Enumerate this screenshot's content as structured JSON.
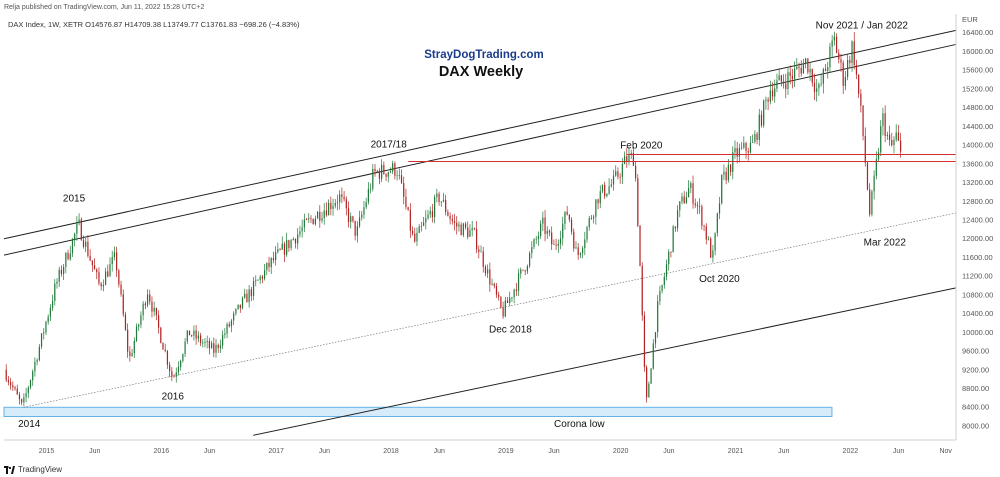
{
  "header": {
    "published": "Relja published on TradingView.com, Jun 11, 2022 15:28 UTC+2",
    "symbol": "DAX Index, 1W, XETR",
    "ohlc": "O14576.87 H14709.38 L13749.77 C13761.83 −698.26 (−4.83%)"
  },
  "footer": {
    "brand": "TradingView"
  },
  "colors": {
    "up": "#1f7a3a",
    "down": "#b22222",
    "support": "#d03030",
    "zone_fill": "#d6ecfb",
    "zone_stroke": "#4aa3df",
    "trend": "#222222"
  },
  "chart_data": {
    "type": "candlestick",
    "title": "DAX Weekly",
    "subtitle": "StrayDogTrading.com",
    "currency": "EUR",
    "ylim": [
      7700,
      16800
    ],
    "y_ticks": [
      8000,
      8400,
      8800,
      9200,
      9600,
      10000,
      10400,
      10800,
      11200,
      11600,
      12000,
      12400,
      12800,
      13200,
      13600,
      14000,
      14400,
      14800,
      15200,
      15600,
      16000,
      16400
    ],
    "x_range": [
      2014.63,
      2022.92
    ],
    "x_ticks": [
      {
        "t": 2015.0,
        "label": "2015"
      },
      {
        "t": 2015.42,
        "label": "Jun"
      },
      {
        "t": 2016.0,
        "label": "2016"
      },
      {
        "t": 2016.42,
        "label": "Jun"
      },
      {
        "t": 2017.0,
        "label": "2017"
      },
      {
        "t": 2017.42,
        "label": "Jun"
      },
      {
        "t": 2018.0,
        "label": "2018"
      },
      {
        "t": 2018.42,
        "label": "Jun"
      },
      {
        "t": 2019.0,
        "label": "2019"
      },
      {
        "t": 2019.42,
        "label": "Jun"
      },
      {
        "t": 2020.0,
        "label": "2020"
      },
      {
        "t": 2020.42,
        "label": "Jun"
      },
      {
        "t": 2021.0,
        "label": "2021"
      },
      {
        "t": 2021.42,
        "label": "Jun"
      },
      {
        "t": 2022.0,
        "label": "2022"
      },
      {
        "t": 2022.42,
        "label": "Jun"
      },
      {
        "t": 2022.83,
        "label": "Nov"
      }
    ],
    "series_keypoints": [
      [
        2014.63,
        9200
      ],
      [
        2014.79,
        8400
      ],
      [
        2014.95,
        9800
      ],
      [
        2015.08,
        11000
      ],
      [
        2015.28,
        12300
      ],
      [
        2015.46,
        11000
      ],
      [
        2015.6,
        11600
      ],
      [
        2015.72,
        9400
      ],
      [
        2015.88,
        10900
      ],
      [
        2016.1,
        9000
      ],
      [
        2016.24,
        10000
      ],
      [
        2016.46,
        9600
      ],
      [
        2016.7,
        10600
      ],
      [
        2016.96,
        11500
      ],
      [
        2017.3,
        12400
      ],
      [
        2017.55,
        12900
      ],
      [
        2017.7,
        12100
      ],
      [
        2017.85,
        13400
      ],
      [
        2018.05,
        13500
      ],
      [
        2018.2,
        11900
      ],
      [
        2018.42,
        12900
      ],
      [
        2018.55,
        12300
      ],
      [
        2018.72,
        12100
      ],
      [
        2018.85,
        11200
      ],
      [
        2018.97,
        10400
      ],
      [
        2019.2,
        11600
      ],
      [
        2019.32,
        12300
      ],
      [
        2019.42,
        11800
      ],
      [
        2019.54,
        12600
      ],
      [
        2019.62,
        11600
      ],
      [
        2019.8,
        12900
      ],
      [
        2019.94,
        13200
      ],
      [
        2020.05,
        13700
      ],
      [
        2020.12,
        13750
      ],
      [
        2020.16,
        11900
      ],
      [
        2020.22,
        8400
      ],
      [
        2020.32,
        10500
      ],
      [
        2020.5,
        12600
      ],
      [
        2020.6,
        13100
      ],
      [
        2020.7,
        12500
      ],
      [
        2020.8,
        11550
      ],
      [
        2020.88,
        13200
      ],
      [
        2021.0,
        13800
      ],
      [
        2021.15,
        14000
      ],
      [
        2021.3,
        15200
      ],
      [
        2021.5,
        15500
      ],
      [
        2021.62,
        15800
      ],
      [
        2021.72,
        15100
      ],
      [
        2021.86,
        16250
      ],
      [
        2021.94,
        15400
      ],
      [
        2022.02,
        16150
      ],
      [
        2022.1,
        14500
      ],
      [
        2022.17,
        12500
      ],
      [
        2022.28,
        14600
      ],
      [
        2022.35,
        13900
      ],
      [
        2022.4,
        14200
      ],
      [
        2022.44,
        13760
      ]
    ],
    "support_lines": [
      {
        "y": 13800,
        "t1": 2020.05,
        "t2": 2022.92
      },
      {
        "y": 13650,
        "t1": 2018.15,
        "t2": 2022.92
      }
    ],
    "zone": {
      "y1": 8200,
      "y2": 8400,
      "t1": 2014.63,
      "t2": 2021.84
    },
    "trend_lines": [
      {
        "p1": [
          2014.63,
          12000
        ],
        "p2": [
          2022.92,
          16450
        ],
        "style": "solid"
      },
      {
        "p1": [
          2014.63,
          11650
        ],
        "p2": [
          2022.92,
          16150
        ],
        "style": "solid"
      },
      {
        "p1": [
          2014.8,
          8400
        ],
        "p2": [
          2022.92,
          12550
        ],
        "style": "dotted"
      },
      {
        "p1": [
          2016.8,
          7800
        ],
        "p2": [
          2022.92,
          10950
        ],
        "style": "solid"
      }
    ],
    "annotations": [
      {
        "text": "2015",
        "t": 2015.24,
        "y": 12800
      },
      {
        "text": "2014",
        "t": 2014.85,
        "y": 7980
      },
      {
        "text": "2016",
        "t": 2016.1,
        "y": 8560
      },
      {
        "text": "2017/18",
        "t": 2017.98,
        "y": 13950
      },
      {
        "text": "Dec 2018",
        "t": 2019.04,
        "y": 10000
      },
      {
        "text": "Feb 2020",
        "t": 2020.18,
        "y": 13930
      },
      {
        "text": "Corona low",
        "t": 2019.64,
        "y": 7980
      },
      {
        "text": "Oct 2020",
        "t": 2020.86,
        "y": 11080
      },
      {
        "text": "Nov 2021 / Jan 2022",
        "t": 2022.1,
        "y": 16490
      },
      {
        "text": "Mar 2022",
        "t": 2022.3,
        "y": 11850
      }
    ]
  }
}
